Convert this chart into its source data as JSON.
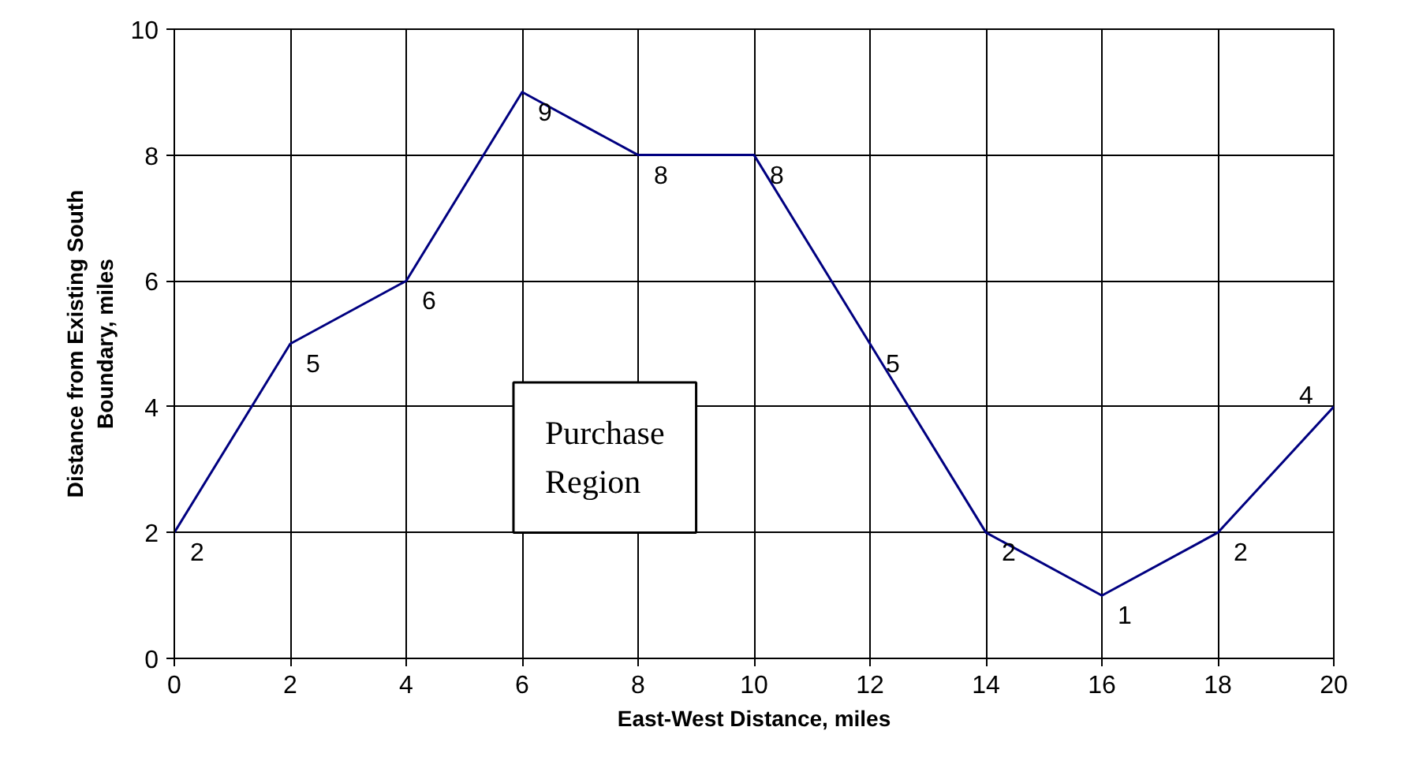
{
  "chart_data": {
    "type": "line",
    "xlabel": "East-West Distance, miles",
    "ylabel": "Distance from Existing South\nBoundary, miles",
    "x": [
      0,
      2,
      4,
      6,
      8,
      10,
      12,
      14,
      16,
      18,
      20
    ],
    "series": [
      {
        "color": "#000080",
        "values": [
          2,
          5,
          6,
          9,
          8,
          8,
          5,
          2,
          1,
          2,
          4
        ]
      }
    ],
    "xlim": [
      0,
      20
    ],
    "xticks": [
      0,
      2,
      4,
      6,
      8,
      10,
      12,
      14,
      16,
      18,
      20
    ],
    "ylim": [
      0,
      10
    ],
    "yticks": [
      0,
      2,
      4,
      6,
      8,
      10
    ],
    "grid": true,
    "data_labels": true,
    "marker": "none",
    "line_style": "solid",
    "annotations": [
      "Purchase\nRegion"
    ]
  }
}
